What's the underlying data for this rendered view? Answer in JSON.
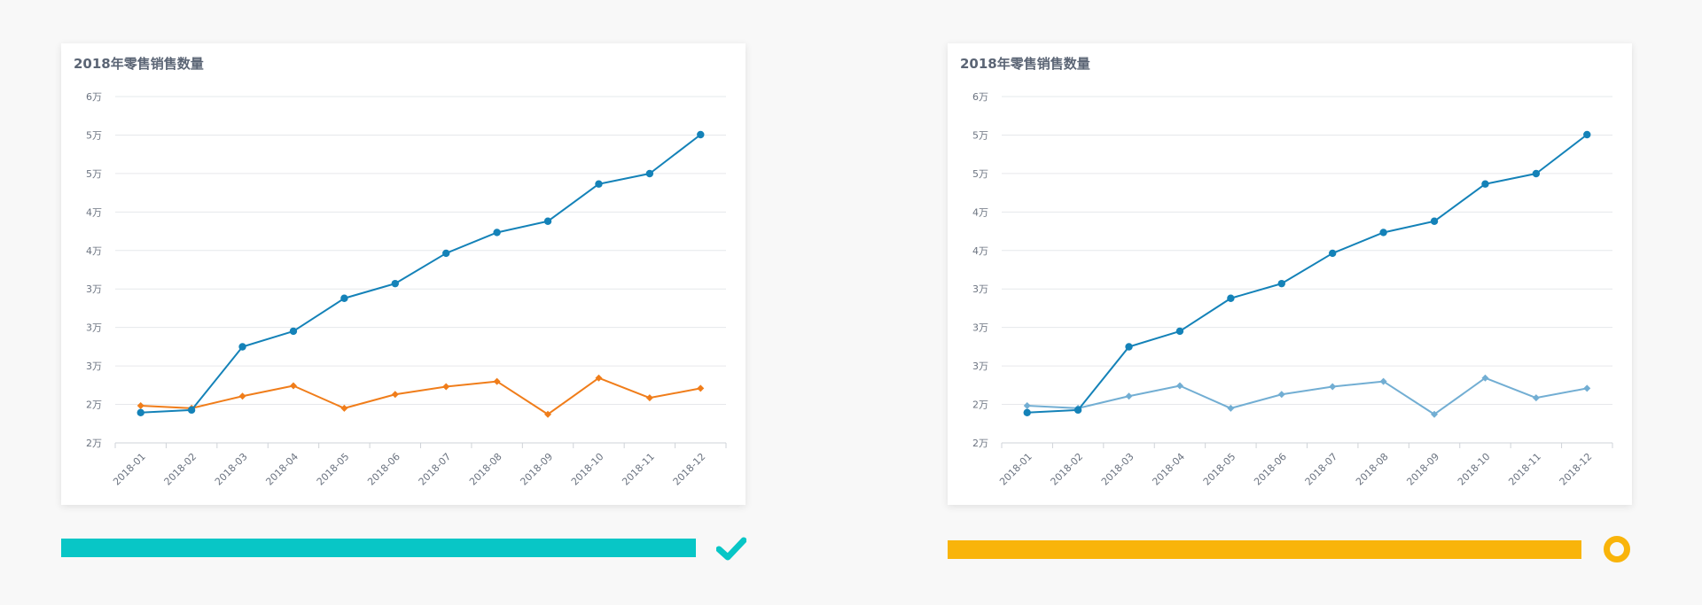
{
  "chart_data": [
    {
      "type": "line",
      "title": "2018年零售销售数量",
      "categories": [
        "2018-01",
        "2018-02",
        "2018-03",
        "2018-04",
        "2018-05",
        "2018-06",
        "2018-07",
        "2018-08",
        "2018-09",
        "2018-10",
        "2018-11",
        "2018-12"
      ],
      "y_tick_labels": [
        "2万",
        "2万",
        "3万",
        "3万",
        "3万",
        "4万",
        "4万",
        "5万",
        "5万",
        "6万"
      ],
      "ylim": [
        20000,
        60000
      ],
      "grid": true,
      "series": [
        {
          "values": [
            23500,
            23800,
            31100,
            32900,
            36700,
            38400,
            41900,
            44300,
            45600,
            49900,
            51100,
            55600
          ],
          "color": "#1482b8",
          "marker": "circle"
        },
        {
          "values": [
            24300,
            24000,
            25400,
            26600,
            24000,
            25600,
            26500,
            27100,
            23300,
            27500,
            25200,
            26300
          ],
          "color": "#f07d1a",
          "marker": "diamond"
        }
      ]
    },
    {
      "type": "line",
      "title": "2018年零售销售数量",
      "categories": [
        "2018-01",
        "2018-02",
        "2018-03",
        "2018-04",
        "2018-05",
        "2018-06",
        "2018-07",
        "2018-08",
        "2018-09",
        "2018-10",
        "2018-11",
        "2018-12"
      ],
      "y_tick_labels": [
        "2万",
        "2万",
        "3万",
        "3万",
        "3万",
        "4万",
        "4万",
        "5万",
        "5万",
        "6万"
      ],
      "ylim": [
        20000,
        60000
      ],
      "grid": true,
      "series": [
        {
          "values": [
            23500,
            23800,
            31100,
            32900,
            36700,
            38400,
            41900,
            44300,
            45600,
            49900,
            51100,
            55600
          ],
          "color": "#1482b8",
          "marker": "circle"
        },
        {
          "values": [
            24300,
            24000,
            25400,
            26600,
            24000,
            25600,
            26500,
            27100,
            23300,
            27500,
            25200,
            26300
          ],
          "color": "#72aed3",
          "marker": "diamond"
        }
      ]
    }
  ],
  "status": {
    "left": {
      "bar_color": "#08c6c6",
      "icon": "check-icon",
      "icon_color": "#08c6c6"
    },
    "right": {
      "bar_color": "#f9b40a",
      "icon": "ring-icon",
      "icon_color": "#f9b40a"
    }
  }
}
